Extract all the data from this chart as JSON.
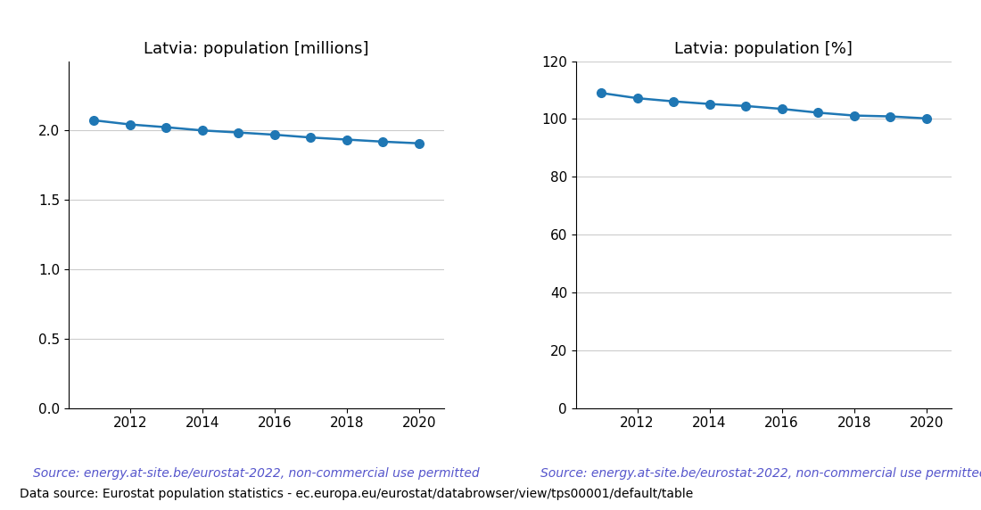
{
  "years": [
    2011,
    2012,
    2013,
    2014,
    2015,
    2016,
    2017,
    2018,
    2019,
    2020
  ],
  "pop_millions": [
    2.074,
    2.044,
    2.024,
    2.001,
    1.986,
    1.97,
    1.95,
    1.935,
    1.92,
    1.908
  ],
  "pop_percent": [
    109.0,
    107.2,
    106.1,
    105.2,
    104.5,
    103.5,
    102.2,
    101.2,
    100.9,
    100.2
  ],
  "title_left": "Latvia: population [millions]",
  "title_right": "Latvia: population [%]",
  "source_text": "Source: energy.at-site.be/eurostat-2022, non-commercial use permitted",
  "footer_text": "Data source: Eurostat population statistics - ec.europa.eu/eurostat/databrowser/view/tps00001/default/table",
  "line_color": "#1f77b4",
  "source_color": "#5555cc",
  "ylim_left": [
    0.0,
    2.5
  ],
  "ylim_right": [
    0,
    120
  ],
  "yticks_left": [
    0.0,
    0.5,
    1.0,
    1.5,
    2.0
  ],
  "yticks_right": [
    0,
    20,
    40,
    60,
    80,
    100,
    120
  ],
  "xticks": [
    2012,
    2014,
    2016,
    2018,
    2020
  ],
  "xlim": [
    2010.3,
    2020.7
  ],
  "marker": "o",
  "markersize": 7,
  "linewidth": 1.8,
  "source_fontsize": 10,
  "footer_fontsize": 10,
  "title_fontsize": 13,
  "tick_fontsize": 11,
  "grid_color": "#cccccc",
  "grid_linewidth": 0.8
}
